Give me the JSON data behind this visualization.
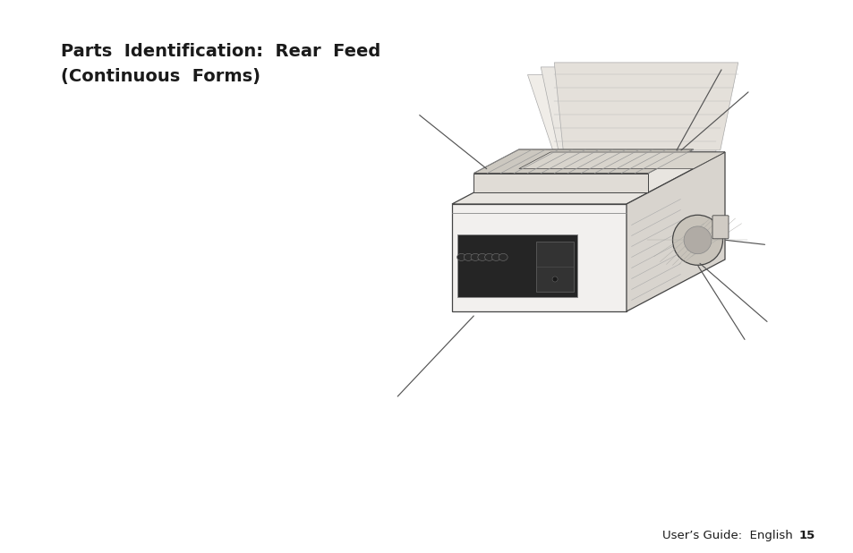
{
  "title_line1": "Parts  Identification:  Rear  Feed",
  "title_line2": "(Continuous  Forms)",
  "footer_text": "User’s Guide:  English",
  "footer_page": "15",
  "bg_color": "#ffffff",
  "text_color": "#1a1a1a",
  "title_fontsize": 14.0,
  "footer_fontsize": 9.5,
  "lc": "#444444",
  "lc_light": "#888888",
  "lc_dark": "#222222",
  "fill_body_front": "#f2f0ee",
  "fill_body_top": "#e8e5e0",
  "fill_body_right": "#d8d4ce",
  "fill_panel": "#252525",
  "fill_panel2": "#1a1a1a",
  "fill_platen": "#c8c3ba",
  "fill_knob": "#c8c3ba",
  "fill_paper": "#f0ede8",
  "fill_hatch": "#d0ccc6"
}
